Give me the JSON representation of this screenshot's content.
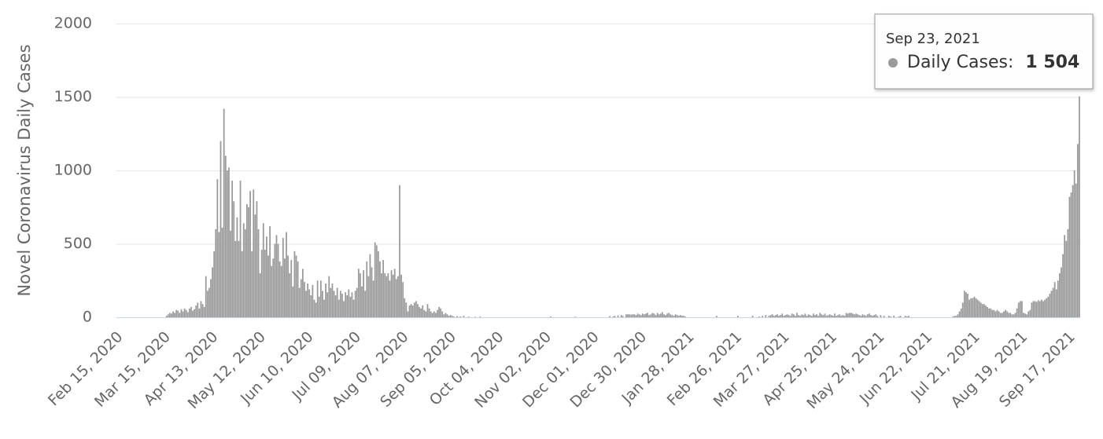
{
  "chart_data": {
    "type": "bar",
    "y_label": "Novel Coronavirus Daily Cases",
    "ylim": [
      0,
      2000
    ],
    "yticks": [
      0,
      500,
      1000,
      1500,
      2000
    ],
    "grid": true,
    "color": "#9a9a9a",
    "tooltip": {
      "title": "Sep 23, 2021",
      "label": "Daily Cases:",
      "value": 1504,
      "value_label": "1 504"
    },
    "categories": [
      "Feb 15, 2020",
      null,
      null,
      null,
      null,
      null,
      null,
      null,
      null,
      null,
      null,
      null,
      null,
      null,
      null,
      null,
      null,
      null,
      null,
      null,
      null,
      null,
      null,
      null,
      null,
      null,
      null,
      null,
      null,
      "Mar 15, 2020",
      null,
      null,
      null,
      null,
      null,
      null,
      null,
      null,
      null,
      null,
      null,
      null,
      null,
      null,
      null,
      null,
      null,
      null,
      null,
      null,
      null,
      null,
      null,
      null,
      null,
      null,
      null,
      null,
      "Apr 13, 2020",
      null,
      null,
      null,
      null,
      null,
      null,
      null,
      null,
      null,
      null,
      null,
      null,
      null,
      null,
      null,
      null,
      null,
      null,
      null,
      null,
      null,
      null,
      null,
      null,
      null,
      null,
      null,
      null,
      "May 12, 2020",
      null,
      null,
      null,
      null,
      null,
      null,
      null,
      null,
      null,
      null,
      null,
      null,
      null,
      null,
      null,
      null,
      null,
      null,
      null,
      null,
      null,
      null,
      null,
      null,
      null,
      null,
      null,
      null,
      "Jun 10, 2020",
      null,
      null,
      null,
      null,
      null,
      null,
      null,
      null,
      null,
      null,
      null,
      null,
      null,
      null,
      null,
      null,
      null,
      null,
      null,
      null,
      null,
      null,
      null,
      null,
      null,
      null,
      null,
      null,
      "Jul 09, 2020",
      null,
      null,
      null,
      null,
      null,
      null,
      null,
      null,
      null,
      null,
      null,
      null,
      null,
      null,
      null,
      null,
      null,
      null,
      null,
      null,
      null,
      null,
      null,
      null,
      null,
      null,
      null,
      null,
      "Aug 07, 2020",
      null,
      null,
      null,
      null,
      null,
      null,
      null,
      null,
      null,
      null,
      null,
      null,
      null,
      null,
      null,
      null,
      null,
      null,
      null,
      null,
      null,
      null,
      null,
      null,
      null,
      null,
      null,
      null,
      "Sep 05, 2020",
      null,
      null,
      null,
      null,
      null,
      null,
      null,
      null,
      null,
      null,
      null,
      null,
      null,
      null,
      null,
      null,
      null,
      null,
      null,
      null,
      null,
      null,
      null,
      null,
      null,
      null,
      null,
      null,
      "Oct 04, 2020",
      null,
      null,
      null,
      null,
      null,
      null,
      null,
      null,
      null,
      null,
      null,
      null,
      null,
      null,
      null,
      null,
      null,
      null,
      null,
      null,
      null,
      null,
      null,
      null,
      null,
      null,
      null,
      null,
      "Nov 02, 2020",
      null,
      null,
      null,
      null,
      null,
      null,
      null,
      null,
      null,
      null,
      null,
      null,
      null,
      null,
      null,
      null,
      null,
      null,
      null,
      null,
      null,
      null,
      null,
      null,
      null,
      null,
      null,
      null,
      "Dec 01, 2020",
      null,
      null,
      null,
      null,
      null,
      null,
      null,
      null,
      null,
      null,
      null,
      null,
      null,
      null,
      null,
      null,
      null,
      null,
      null,
      null,
      null,
      null,
      null,
      null,
      null,
      null,
      null,
      null,
      "Dec 30, 2020",
      null,
      null,
      null,
      null,
      null,
      null,
      null,
      null,
      null,
      null,
      null,
      null,
      null,
      null,
      null,
      null,
      null,
      null,
      null,
      null,
      null,
      null,
      null,
      null,
      null,
      null,
      null,
      null,
      "Jan 28, 2021",
      null,
      null,
      null,
      null,
      null,
      null,
      null,
      null,
      null,
      null,
      null,
      null,
      null,
      null,
      null,
      null,
      null,
      null,
      null,
      null,
      null,
      null,
      null,
      null,
      null,
      null,
      null,
      null,
      "Feb 26, 2021",
      null,
      null,
      null,
      null,
      null,
      null,
      null,
      null,
      null,
      null,
      null,
      null,
      null,
      null,
      null,
      null,
      null,
      null,
      null,
      null,
      null,
      null,
      null,
      null,
      null,
      null,
      null,
      null,
      "Mar 27, 2021",
      null,
      null,
      null,
      null,
      null,
      null,
      null,
      null,
      null,
      null,
      null,
      null,
      null,
      null,
      null,
      null,
      null,
      null,
      null,
      null,
      null,
      null,
      null,
      null,
      null,
      null,
      null,
      null,
      "Apr 25, 2021",
      null,
      null,
      null,
      null,
      null,
      null,
      null,
      null,
      null,
      null,
      null,
      null,
      null,
      null,
      null,
      null,
      null,
      null,
      null,
      null,
      null,
      null,
      null,
      null,
      null,
      null,
      null,
      null,
      "May 24, 2021",
      null,
      null,
      null,
      null,
      null,
      null,
      null,
      null,
      null,
      null,
      null,
      null,
      null,
      null,
      null,
      null,
      null,
      null,
      null,
      null,
      null,
      null,
      null,
      null,
      null,
      null,
      null,
      null,
      "Jun 22, 2021",
      null,
      null,
      null,
      null,
      null,
      null,
      null,
      null,
      null,
      null,
      null,
      null,
      null,
      null,
      null,
      null,
      null,
      null,
      null,
      null,
      null,
      null,
      null,
      null,
      null,
      null,
      null,
      null,
      "Jul 21, 2021",
      null,
      null,
      null,
      null,
      null,
      null,
      null,
      null,
      null,
      null,
      null,
      null,
      null,
      null,
      null,
      null,
      null,
      null,
      null,
      null,
      null,
      null,
      null,
      null,
      null,
      null,
      null,
      null,
      "Aug 19, 2021",
      null,
      null,
      null,
      null,
      null,
      null,
      null,
      null,
      null,
      null,
      null,
      null,
      null,
      null,
      null,
      null,
      null,
      null,
      null,
      null,
      null,
      null,
      null,
      null,
      null,
      null,
      null,
      null,
      "Sep 17, 2021",
      null,
      null,
      null,
      null,
      null,
      null
    ],
    "values": [
      0,
      0,
      0,
      0,
      0,
      0,
      0,
      0,
      0,
      0,
      0,
      0,
      0,
      0,
      0,
      0,
      0,
      0,
      0,
      0,
      0,
      0,
      0,
      0,
      0,
      0,
      0,
      0,
      0,
      0,
      10,
      20,
      30,
      25,
      40,
      30,
      50,
      45,
      30,
      55,
      40,
      60,
      50,
      35,
      60,
      70,
      45,
      55,
      80,
      100,
      60,
      110,
      90,
      70,
      280,
      180,
      200,
      260,
      340,
      450,
      600,
      940,
      580,
      1200,
      610,
      1420,
      1100,
      1000,
      1020,
      590,
      930,
      790,
      520,
      680,
      520,
      930,
      450,
      640,
      600,
      770,
      750,
      860,
      450,
      870,
      700,
      790,
      600,
      300,
      460,
      640,
      460,
      550,
      420,
      620,
      350,
      400,
      500,
      560,
      500,
      380,
      350,
      540,
      400,
      580,
      420,
      300,
      390,
      210,
      450,
      420,
      380,
      200,
      260,
      330,
      240,
      180,
      230,
      190,
      150,
      220,
      120,
      100,
      250,
      140,
      250,
      180,
      120,
      230,
      170,
      280,
      200,
      230,
      180,
      150,
      200,
      120,
      180,
      160,
      110,
      170,
      150,
      190,
      140,
      170,
      120,
      180,
      200,
      330,
      300,
      210,
      320,
      180,
      380,
      280,
      430,
      340,
      250,
      510,
      490,
      450,
      380,
      300,
      390,
      300,
      280,
      300,
      250,
      320,
      290,
      330,
      260,
      280,
      900,
      290,
      240,
      130,
      100,
      40,
      80,
      90,
      80,
      100,
      110,
      90,
      70,
      60,
      80,
      50,
      40,
      90,
      60,
      40,
      30,
      40,
      30,
      50,
      70,
      60,
      40,
      20,
      30,
      20,
      10,
      15,
      10,
      5,
      0,
      8,
      0,
      5,
      0,
      10,
      0,
      0,
      5,
      0,
      0,
      0,
      3,
      0,
      0,
      5,
      0,
      0,
      0,
      0,
      0,
      0,
      0,
      0,
      0,
      0,
      0,
      0,
      0,
      0,
      0,
      0,
      0,
      0,
      0,
      0,
      0,
      0,
      0,
      0,
      0,
      0,
      0,
      0,
      0,
      0,
      0,
      0,
      0,
      0,
      0,
      0,
      0,
      0,
      0,
      0,
      0,
      0,
      5,
      0,
      0,
      0,
      0,
      0,
      0,
      0,
      0,
      0,
      0,
      0,
      0,
      0,
      0,
      4,
      0,
      0,
      0,
      0,
      0,
      0,
      0,
      0,
      0,
      0,
      0,
      0,
      0,
      0,
      0,
      0,
      0,
      0,
      0,
      0,
      8,
      0,
      5,
      10,
      0,
      12,
      0,
      15,
      8,
      0,
      20,
      20,
      20,
      18,
      20,
      20,
      15,
      25,
      20,
      15,
      25,
      20,
      25,
      30,
      15,
      20,
      30,
      25,
      15,
      30,
      20,
      25,
      35,
      20,
      15,
      25,
      30,
      20,
      15,
      10,
      20,
      15,
      10,
      15,
      10,
      10,
      5,
      0,
      0,
      0,
      0,
      0,
      0,
      0,
      0,
      0,
      0,
      0,
      0,
      0,
      0,
      0,
      0,
      0,
      0,
      10,
      0,
      0,
      0,
      0,
      0,
      0,
      0,
      0,
      0,
      0,
      0,
      0,
      10,
      0,
      0,
      0,
      0,
      0,
      0,
      0,
      0,
      10,
      0,
      0,
      0,
      5,
      0,
      10,
      0,
      15,
      0,
      10,
      15,
      20,
      10,
      15,
      20,
      10,
      15,
      25,
      10,
      15,
      20,
      15,
      10,
      25,
      20,
      10,
      30,
      15,
      10,
      20,
      15,
      25,
      10,
      20,
      15,
      10,
      25,
      15,
      20,
      10,
      30,
      20,
      15,
      25,
      10,
      15,
      20,
      15,
      10,
      25,
      10,
      15,
      20,
      10,
      15,
      10,
      30,
      25,
      30,
      30,
      25,
      20,
      25,
      20,
      15,
      10,
      20,
      15,
      10,
      20,
      25,
      15,
      10,
      15,
      20,
      10,
      0,
      15,
      0,
      10,
      0,
      0,
      10,
      5,
      0,
      10,
      0,
      0,
      5,
      10,
      0,
      0,
      10,
      5,
      10,
      0,
      0,
      0,
      0,
      0,
      0,
      0,
      0,
      0,
      0,
      0,
      0,
      0,
      0,
      0,
      0,
      0,
      0,
      0,
      0,
      0,
      0,
      0,
      0,
      0,
      0,
      5,
      10,
      10,
      20,
      40,
      60,
      100,
      180,
      170,
      160,
      120,
      130,
      130,
      140,
      130,
      120,
      110,
      100,
      90,
      90,
      80,
      70,
      60,
      60,
      50,
      50,
      40,
      50,
      40,
      30,
      30,
      40,
      50,
      40,
      30,
      30,
      20,
      20,
      30,
      60,
      100,
      110,
      110,
      30,
      25,
      20,
      40,
      50,
      100,
      110,
      110,
      105,
      115,
      110,
      120,
      110,
      120,
      130,
      140,
      160,
      180,
      200,
      240,
      190,
      250,
      300,
      340,
      430,
      560,
      520,
      600,
      820,
      850,
      900,
      1000,
      910,
      1180,
      1504
    ]
  }
}
